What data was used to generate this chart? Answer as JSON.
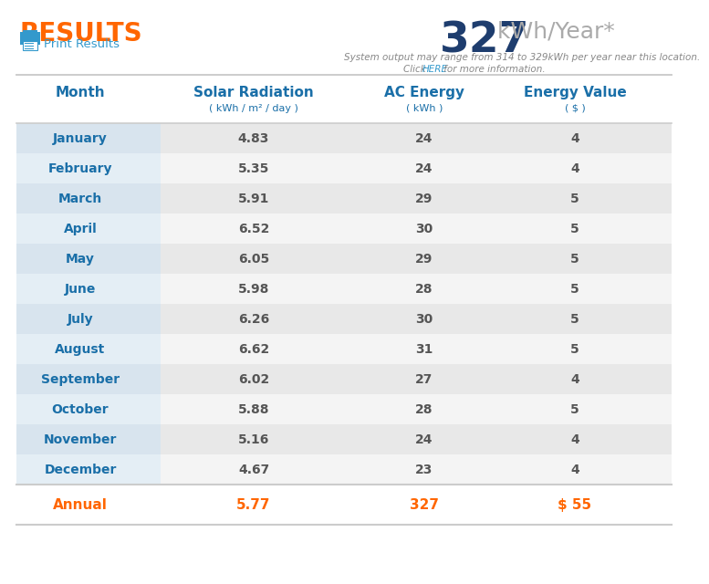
{
  "title_results": "RESULTS",
  "title_results_color": "#FF6600",
  "kwh_value": "327",
  "kwh_unit": " kWh/Year*",
  "kwh_value_color": "#1e3d6e",
  "kwh_unit_color": "#aaaaaa",
  "subtitle_line1": "System output may range from 314 to 329kWh per year near this location.",
  "subtitle_line2_pre": "Click ",
  "subtitle_line2_link": "HERE",
  "subtitle_line2_post": " for more information.",
  "subtitle_color": "#888888",
  "here_color": "#3399cc",
  "print_results_text": "Print Results",
  "print_results_color": "#3399cc",
  "col_headers": [
    "Month",
    "Solar Radiation",
    "AC Energy",
    "Energy Value"
  ],
  "col_subheaders": [
    "",
    "( kWh / m² / day )",
    "( kWh )",
    "( $ )"
  ],
  "header_color": "#1a6fa8",
  "months": [
    "January",
    "February",
    "March",
    "April",
    "May",
    "June",
    "July",
    "August",
    "September",
    "October",
    "November",
    "December"
  ],
  "solar_radiation": [
    4.83,
    5.35,
    5.91,
    6.52,
    6.05,
    5.98,
    6.26,
    6.62,
    6.02,
    5.88,
    5.16,
    4.67
  ],
  "ac_energy": [
    24,
    24,
    29,
    30,
    29,
    28,
    30,
    31,
    27,
    28,
    24,
    23
  ],
  "energy_value": [
    4,
    4,
    5,
    5,
    5,
    5,
    5,
    5,
    4,
    5,
    4,
    4
  ],
  "annual_label": "Annual",
  "annual_solar": "5.77",
  "annual_ac": "327",
  "annual_ev": "$ 55",
  "annual_color": "#FF6600",
  "row_even_color": "#e8e8e8",
  "row_odd_color": "#f4f4f4",
  "month_even_color": "#d8e4ee",
  "month_odd_color": "#e4eef5",
  "month_name_color": "#1a6fa8",
  "data_color": "#555555",
  "sep_color": "#cccccc",
  "bg_color": "#ffffff"
}
